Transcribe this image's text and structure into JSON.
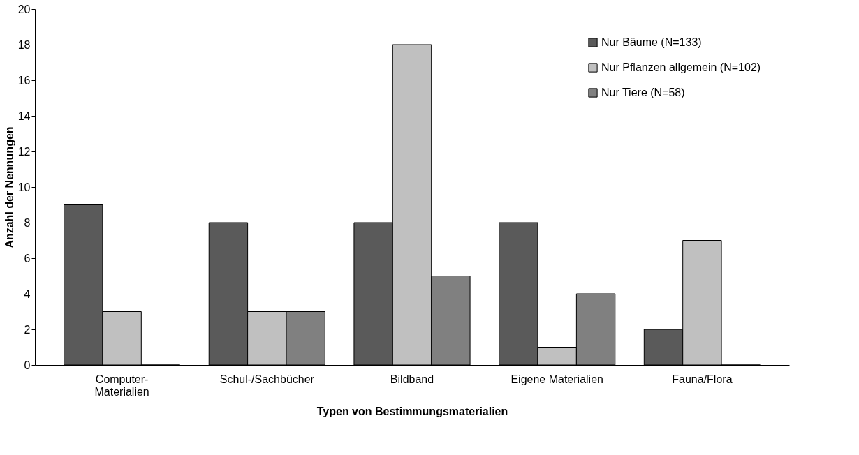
{
  "chart_data": {
    "type": "bar",
    "xlabel": "Typen von Bestimmungsmaterialien",
    "ylabel": "Anzahl der Nennungen",
    "categories": [
      "Computer-\nMaterialien",
      "Schul-/Sachbücher",
      "Bildband",
      "Eigene Materialien",
      "Fauna/Flora"
    ],
    "series": [
      {
        "name": "Nur Bäume (N=133)",
        "color": "#5a5a5a",
        "values": [
          9,
          8,
          8,
          8,
          2
        ]
      },
      {
        "name": "Nur Pflanzen allgemein (N=102)",
        "color": "#c0c0c0",
        "values": [
          3,
          3,
          18,
          1,
          7
        ]
      },
      {
        "name": "Nur Tiere (N=58)",
        "color": "#808080",
        "values": [
          0,
          3,
          5,
          4,
          0
        ]
      }
    ],
    "ylim": [
      0,
      20
    ],
    "yticks": [
      0,
      2,
      4,
      6,
      8,
      10,
      12,
      14,
      16,
      18,
      20
    ],
    "grid": false,
    "legend": "top right"
  }
}
